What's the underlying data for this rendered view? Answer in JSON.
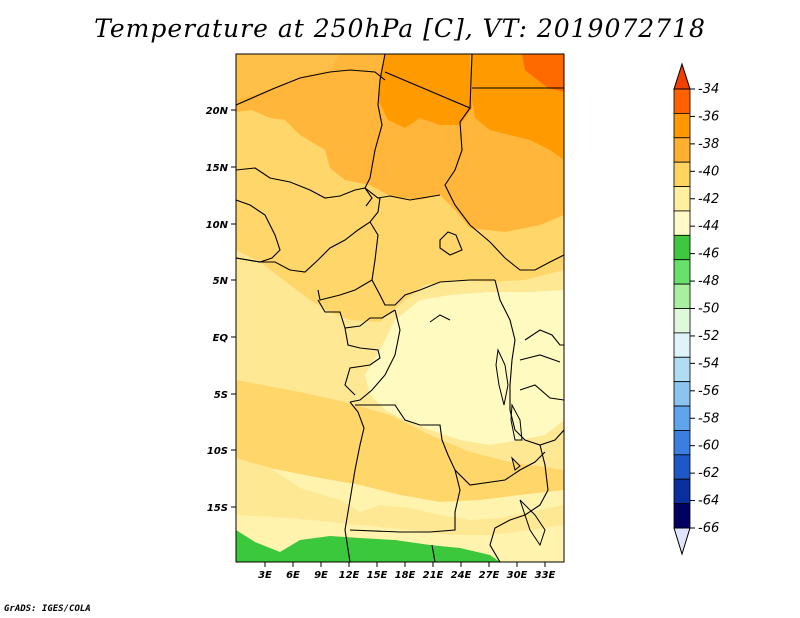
{
  "title": "Temperature at 250hPa [C], VT: 2019072718",
  "footer": "GrADS: IGES/COLA",
  "lat_labels": [
    "20N",
    "15N",
    "10N",
    "5N",
    "EQ",
    "5S",
    "10S",
    "15S"
  ],
  "lon_labels": [
    "3E",
    "6E",
    "9E",
    "12E",
    "15E",
    "18E",
    "21E",
    "24E",
    "27E",
    "30E",
    "33E"
  ],
  "colorbar": {
    "labels": [
      "-34",
      "-36",
      "-38",
      "-40",
      "-42",
      "-44",
      "-46",
      "-48",
      "-50",
      "-52",
      "-54",
      "-56",
      "-58",
      "-60",
      "-62",
      "-64",
      "-66"
    ],
    "colors": [
      "#ff6000",
      "#ff9800",
      "#ffb030",
      "#ffd560",
      "#fff0a0",
      "#fffac8",
      "#3dc840",
      "#68e06c",
      "#a8f0a0",
      "#dff8dc",
      "#dff4f8",
      "#b0ddf4",
      "#8cc4f0",
      "#60a4ec",
      "#3c7ee0",
      "#1e58c8",
      "#0a30a0",
      "#000060"
    ],
    "top_arrow_color": "#f04000",
    "bottom_arrow_color": "#e0e4ff"
  },
  "map_fill_colors": {
    "minus_36": "#ff9a00",
    "minus_38": "#ffb63a",
    "minus_40": "#ffd66a",
    "minus_42": "#ffe894",
    "minus_44": "#fffac0",
    "minus_46": "#3cc83c"
  }
}
